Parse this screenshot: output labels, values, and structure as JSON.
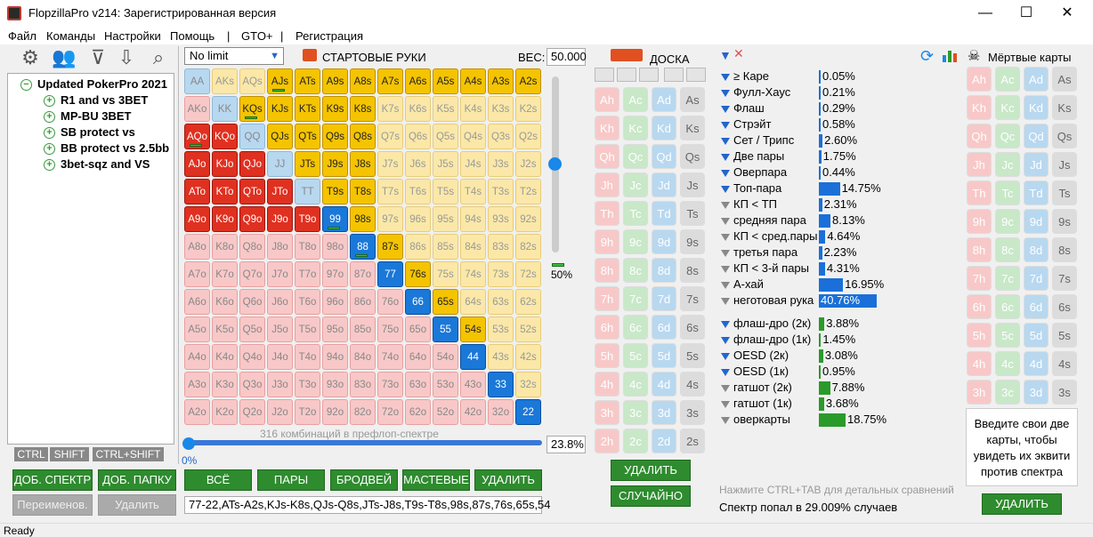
{
  "window": {
    "title": "FlopzillaPro v214: Зарегистрированная версия",
    "minimize": "—",
    "maximize": "☐",
    "close": "✕"
  },
  "menu": [
    "Файл",
    "Команды",
    "Настройки",
    "Помощь",
    "|",
    "GTO+",
    "|",
    "Регистрация"
  ],
  "tree": {
    "root": "Updated PokerPro 2021",
    "items": [
      "R1 and vs 3BET",
      "MP-BU 3BET",
      "SB protect vs",
      "BB protect vs 2.5bb",
      "3bet-sqz and VS"
    ]
  },
  "keys": [
    "CTRL",
    "SHIFT",
    "CTRL+SHIFT"
  ],
  "left_buttons": {
    "add_range": "ДОБ. СПЕКТР",
    "add_folder": "ДОБ. ПАПКУ",
    "rename": "Переименов.",
    "delete": "Удалить"
  },
  "range": {
    "dropdown": "No limit",
    "header": "СТАРТОВЫЕ РУКИ",
    "weight_label": "ВЕС:",
    "weight_value": "50.000",
    "vslider_value": "50%",
    "combos_text": "316 комбинаций в префлоп-спектре",
    "percent": "23.8%",
    "hslider_value": "0%",
    "range_string": "77-22,ATs-A2s,KJs-K8s,QJs-Q8s,JTs-J8s,T9s-T8s,98s,87s,76s,65s,54"
  },
  "grid": [
    [
      "AA",
      "AKs",
      "AQs",
      "AJs",
      "ATs",
      "A9s",
      "A8s",
      "A7s",
      "A6s",
      "A5s",
      "A4s",
      "A3s",
      "A2s"
    ],
    [
      "AKo",
      "KK",
      "KQs",
      "KJs",
      "KTs",
      "K9s",
      "K8s",
      "K7s",
      "K6s",
      "K5s",
      "K4s",
      "K3s",
      "K2s"
    ],
    [
      "AQo",
      "KQo",
      "QQ",
      "QJs",
      "QTs",
      "Q9s",
      "Q8s",
      "Q7s",
      "Q6s",
      "Q5s",
      "Q4s",
      "Q3s",
      "Q2s"
    ],
    [
      "AJo",
      "KJo",
      "QJo",
      "JJ",
      "JTs",
      "J9s",
      "J8s",
      "J7s",
      "J6s",
      "J5s",
      "J4s",
      "J3s",
      "J2s"
    ],
    [
      "ATo",
      "KTo",
      "QTo",
      "JTo",
      "TT",
      "T9s",
      "T8s",
      "T7s",
      "T6s",
      "T5s",
      "T4s",
      "T3s",
      "T2s"
    ],
    [
      "A9o",
      "K9o",
      "Q9o",
      "J9o",
      "T9o",
      "99",
      "98s",
      "97s",
      "96s",
      "95s",
      "94s",
      "93s",
      "92s"
    ],
    [
      "A8o",
      "K8o",
      "Q8o",
      "J8o",
      "T8o",
      "98o",
      "88",
      "87s",
      "86s",
      "85s",
      "84s",
      "83s",
      "82s"
    ],
    [
      "A7o",
      "K7o",
      "Q7o",
      "J7o",
      "T7o",
      "97o",
      "87o",
      "77",
      "76s",
      "75s",
      "74s",
      "73s",
      "72s"
    ],
    [
      "A6o",
      "K6o",
      "Q6o",
      "J6o",
      "T6o",
      "96o",
      "86o",
      "76o",
      "66",
      "65s",
      "64s",
      "63s",
      "62s"
    ],
    [
      "A5o",
      "K5o",
      "Q5o",
      "J5o",
      "T5o",
      "95o",
      "85o",
      "75o",
      "65o",
      "55",
      "54s",
      "53s",
      "52s"
    ],
    [
      "A4o",
      "K4o",
      "Q4o",
      "J4o",
      "T4o",
      "94o",
      "84o",
      "74o",
      "64o",
      "54o",
      "44",
      "43s",
      "42s"
    ],
    [
      "A3o",
      "K3o",
      "Q3o",
      "J3o",
      "T3o",
      "93o",
      "83o",
      "73o",
      "63o",
      "53o",
      "43o",
      "33",
      "32s"
    ],
    [
      "A2o",
      "K2o",
      "Q2o",
      "J2o",
      "T2o",
      "92o",
      "82o",
      "72o",
      "62o",
      "52o",
      "42o",
      "32o",
      "22"
    ]
  ],
  "grid_buttons": [
    "ВСЁ",
    "ПАРЫ",
    "БРОДВЕЙ",
    "МАСТЕВЫЕ",
    "УДАЛИТЬ"
  ],
  "board": {
    "header": "ДОСКА",
    "cards": [
      [
        "Ah",
        "Ac",
        "Ad",
        "As"
      ],
      [
        "Kh",
        "Kc",
        "Kd",
        "Ks"
      ],
      [
        "Qh",
        "Qc",
        "Qd",
        "Qs"
      ],
      [
        "Jh",
        "Jc",
        "Jd",
        "Js"
      ],
      [
        "Th",
        "Tc",
        "Td",
        "Ts"
      ],
      [
        "9h",
        "9c",
        "9d",
        "9s"
      ],
      [
        "8h",
        "8c",
        "8d",
        "8s"
      ],
      [
        "7h",
        "7c",
        "7d",
        "7s"
      ],
      [
        "6h",
        "6c",
        "6d",
        "6s"
      ],
      [
        "5h",
        "5c",
        "5d",
        "5s"
      ],
      [
        "4h",
        "4c",
        "4d",
        "4s"
      ],
      [
        "3h",
        "3c",
        "3d",
        "3s"
      ],
      [
        "2h",
        "2c",
        "2d",
        "2s"
      ]
    ],
    "delete": "УДАЛИТЬ",
    "random": "СЛУЧАЙНО"
  },
  "stats": {
    "made": [
      {
        "label": "≥ Каре",
        "pct": "0.05%",
        "value": 0.05,
        "filter": "blue"
      },
      {
        "label": "Фулл-Хаус",
        "pct": "0.21%",
        "value": 0.21,
        "filter": "blue"
      },
      {
        "label": "Флаш",
        "pct": "0.29%",
        "value": 0.29,
        "filter": "blue"
      },
      {
        "label": "Стрэйт",
        "pct": "0.58%",
        "value": 0.58,
        "filter": "blue"
      },
      {
        "label": "Сет / Трипс",
        "pct": "2.60%",
        "value": 2.6,
        "filter": "blue"
      },
      {
        "label": "Две пары",
        "pct": "1.75%",
        "value": 1.75,
        "filter": "blue"
      },
      {
        "label": "Оверпара",
        "pct": "0.44%",
        "value": 0.44,
        "filter": "blue"
      },
      {
        "label": "Топ-пара",
        "pct": "14.75%",
        "value": 14.75,
        "filter": "blue"
      },
      {
        "label": "КП < ТП",
        "pct": "2.31%",
        "value": 2.31,
        "filter": "grey"
      },
      {
        "label": "средняя пара",
        "pct": "8.13%",
        "value": 8.13,
        "filter": "grey"
      },
      {
        "label": "КП < сред.пары",
        "pct": "4.64%",
        "value": 4.64,
        "filter": "grey"
      },
      {
        "label": "третья пара",
        "pct": "2.23%",
        "value": 2.23,
        "filter": "grey"
      },
      {
        "label": "КП < 3-й пары",
        "pct": "4.31%",
        "value": 4.31,
        "filter": "grey"
      },
      {
        "label": "А-хай",
        "pct": "16.95%",
        "value": 16.95,
        "filter": "grey"
      },
      {
        "label": "неготовая рука",
        "pct": "40.76%",
        "value": 40.76,
        "filter": "grey"
      }
    ],
    "draws": [
      {
        "label": "флаш-дро (2к)",
        "pct": "3.88%",
        "value": 3.88,
        "filter": "blue"
      },
      {
        "label": "флаш-дро (1к)",
        "pct": "1.45%",
        "value": 1.45,
        "filter": "blue"
      },
      {
        "label": "OESD (2к)",
        "pct": "3.08%",
        "value": 3.08,
        "filter": "blue"
      },
      {
        "label": "OESD (1к)",
        "pct": "0.95%",
        "value": 0.95,
        "filter": "blue"
      },
      {
        "label": "гатшот (2к)",
        "pct": "7.88%",
        "value": 7.88,
        "filter": "grey"
      },
      {
        "label": "гатшот (1к)",
        "pct": "3.68%",
        "value": 3.68,
        "filter": "grey"
      },
      {
        "label": "оверкарты",
        "pct": "18.75%",
        "value": 18.75,
        "filter": "grey"
      }
    ],
    "hint": "Нажмите CTRL+TAB для детальных сравнений",
    "hit": "Спектр попал в 29.009% случаев"
  },
  "dead": {
    "header": "Мёртвые карты",
    "prompt": "Введите свои две карты, чтобы увидеть их эквити против спектра",
    "delete": "УДАЛИТЬ"
  },
  "status": "Ready"
}
